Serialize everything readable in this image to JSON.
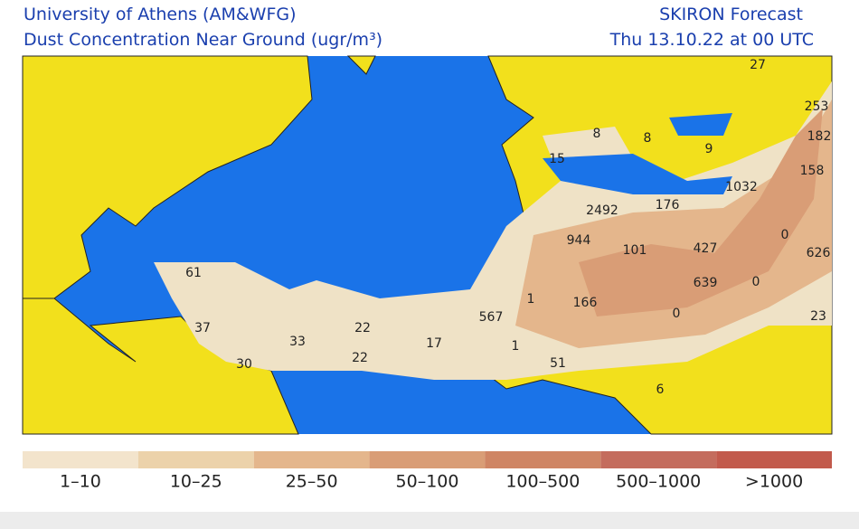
{
  "header": {
    "left_line_1": "University of Athens (AM&WFG)",
    "left_line_2": "Dust Concentration Near Ground (ugr/m³)",
    "right_line_1": "SKIRON Forecast",
    "right_line_2": "Thu 13.10.22 at 00 UTC"
  },
  "map_labels": [
    "27",
    "253",
    "182",
    "158",
    "1032",
    "626",
    "8",
    "8",
    "9",
    "15",
    "2492",
    "176",
    "944",
    "101",
    "427",
    "639",
    "0",
    "0",
    "23",
    "61",
    "37",
    "33",
    "22",
    "22",
    "30",
    "17",
    "567",
    "1",
    "166",
    "0",
    "1",
    "51",
    "6"
  ],
  "legend": [
    {
      "label": "1–10",
      "color": "#f3e4cc"
    },
    {
      "label": "10–25",
      "color": "#ecd2aa"
    },
    {
      "label": "25–50",
      "color": "#e4b68c"
    },
    {
      "label": "50–100",
      "color": "#d99d76"
    },
    {
      "label": "100–500",
      "color": "#cf8564"
    },
    {
      "label": "500–1000",
      "color": "#c46c5d"
    },
    {
      "label": ">1000",
      "color": "#c25a4c"
    }
  ]
}
